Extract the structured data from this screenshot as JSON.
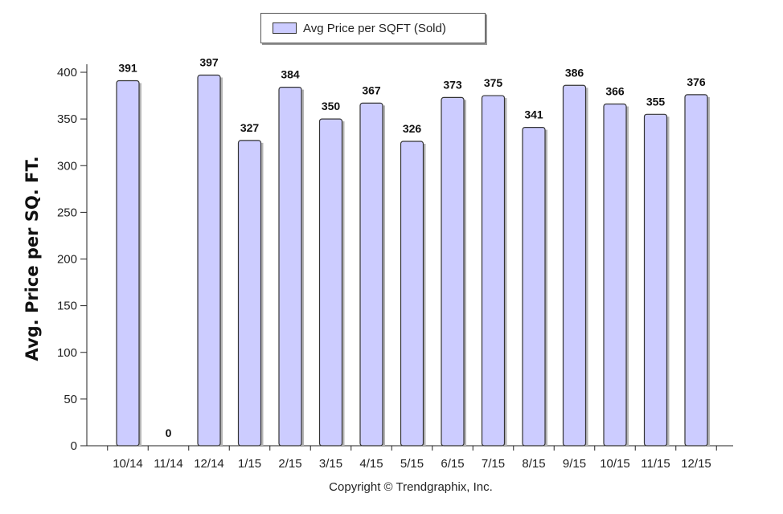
{
  "chart_data": {
    "type": "bar",
    "title": "",
    "xlabel": "",
    "ylabel": "Avg. Price per SQ. FT.",
    "ylim": [
      0,
      400
    ],
    "yticks": [
      0,
      50,
      100,
      150,
      200,
      250,
      300,
      350,
      400
    ],
    "categories": [
      "10/14",
      "11/14",
      "12/14",
      "1/15",
      "2/15",
      "3/15",
      "4/15",
      "5/15",
      "6/15",
      "7/15",
      "8/15",
      "9/15",
      "10/15",
      "11/15",
      "12/15"
    ],
    "series": [
      {
        "name": "Avg Price per SQFT (Sold)",
        "values": [
          391,
          0,
          397,
          327,
          384,
          350,
          367,
          326,
          373,
          375,
          341,
          386,
          366,
          355,
          376
        ]
      }
    ],
    "legend": "top-center",
    "grid": false,
    "bar_color": "#ccccff",
    "bar_border_color": "#333333"
  },
  "footer": {
    "copyright": "Copyright © Trendgraphix, Inc."
  }
}
